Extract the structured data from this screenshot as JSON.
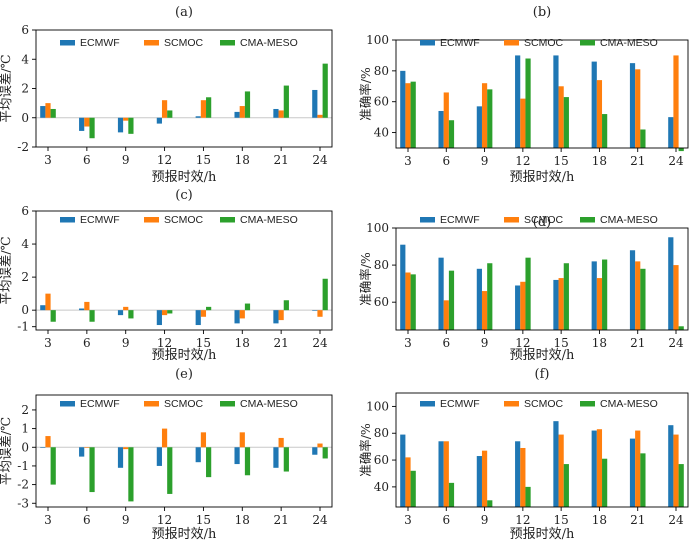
{
  "chart_data": [
    {
      "panel": "(a)",
      "type": "bar",
      "categories": [
        "3",
        "6",
        "9",
        "12",
        "15",
        "18",
        "21",
        "24"
      ],
      "series": [
        {
          "name": "ECMWF",
          "values": [
            0.8,
            -0.9,
            -1.0,
            -0.4,
            0.1,
            0.4,
            0.6,
            1.9
          ]
        },
        {
          "name": "SCMOC",
          "values": [
            1.0,
            -0.6,
            -0.2,
            1.2,
            1.2,
            0.8,
            0.5,
            0.2
          ]
        },
        {
          "name": "CMA-MESO",
          "values": [
            0.6,
            -1.4,
            -1.1,
            0.5,
            1.4,
            1.8,
            2.2,
            3.7
          ]
        }
      ],
      "xlabel": "预报时效/h",
      "ylabel": "平均误差/℃",
      "ylim": [
        -2,
        6
      ],
      "yticks": [
        -2,
        0,
        2,
        4,
        6
      ],
      "legend": "top"
    },
    {
      "panel": "(b)",
      "type": "bar",
      "categories": [
        "3",
        "6",
        "9",
        "12",
        "15",
        "18",
        "21",
        "24"
      ],
      "series": [
        {
          "name": "ECMWF",
          "values": [
            80,
            54,
            57,
            90,
            90,
            86,
            85,
            50
          ]
        },
        {
          "name": "SCMOC",
          "values": [
            72,
            66,
            72,
            62,
            70,
            74,
            81,
            90
          ]
        },
        {
          "name": "CMA-MESO",
          "values": [
            73,
            48,
            68,
            88,
            63,
            52,
            42,
            28
          ]
        }
      ],
      "xlabel": "预报时效/h",
      "ylabel": "准确率/%",
      "ylim": [
        30,
        100
      ],
      "yticks": [
        40,
        60,
        80,
        100
      ],
      "legend": "top"
    },
    {
      "panel": "(c)",
      "type": "bar",
      "categories": [
        "3",
        "6",
        "9",
        "12",
        "15",
        "18",
        "21",
        "24"
      ],
      "series": [
        {
          "name": "ECMWF",
          "values": [
            0.3,
            0.1,
            -0.3,
            -0.9,
            -0.9,
            -0.8,
            -0.8,
            0.0
          ]
        },
        {
          "name": "SCMOC",
          "values": [
            1.0,
            0.5,
            0.2,
            -0.3,
            -0.4,
            -0.5,
            -0.6,
            -0.4
          ]
        },
        {
          "name": "CMA-MESO",
          "values": [
            -0.7,
            -0.7,
            -0.5,
            -0.2,
            0.2,
            0.4,
            0.6,
            1.9
          ]
        }
      ],
      "xlabel": "预报时效/h",
      "ylabel": "平均误差/℃",
      "ylim": [
        -1.2,
        6
      ],
      "yticks": [
        -1,
        0,
        2,
        4,
        6
      ],
      "legend": "top"
    },
    {
      "panel": "(d)",
      "type": "bar",
      "categories": [
        "3",
        "6",
        "9",
        "12",
        "15",
        "18",
        "21",
        "24"
      ],
      "series": [
        {
          "name": "ECMWF",
          "values": [
            91,
            84,
            78,
            69,
            72,
            82,
            88,
            95
          ]
        },
        {
          "name": "SCMOC",
          "values": [
            76,
            61,
            66,
            71,
            73,
            73,
            82,
            80
          ]
        },
        {
          "name": "CMA-MESO",
          "values": [
            75,
            77,
            81,
            84,
            81,
            83,
            78,
            47
          ]
        }
      ],
      "xlabel": "预报时效/h",
      "ylabel": "准确率/%",
      "ylim": [
        45,
        100
      ],
      "yticks": [
        60,
        80,
        100
      ],
      "legend": "top"
    },
    {
      "panel": "(e)",
      "type": "bar",
      "categories": [
        "3",
        "6",
        "9",
        "12",
        "15",
        "18",
        "21",
        "24"
      ],
      "series": [
        {
          "name": "ECMWF",
          "values": [
            0.0,
            -0.5,
            -1.1,
            -1.0,
            -0.8,
            -0.9,
            -1.1,
            -0.4
          ]
        },
        {
          "name": "SCMOC",
          "values": [
            0.6,
            0.0,
            -0.1,
            1.0,
            0.8,
            0.8,
            0.5,
            0.2
          ]
        },
        {
          "name": "CMA-MESO",
          "values": [
            -2.0,
            -2.4,
            -2.9,
            -2.5,
            -1.6,
            -1.5,
            -1.3,
            -0.6
          ]
        }
      ],
      "xlabel": "预报时效/h",
      "ylabel": "平均误差/℃",
      "ylim": [
        -3.2,
        2.8
      ],
      "yticks": [
        -3,
        -2,
        -1,
        0,
        1,
        2
      ],
      "legend": "top"
    },
    {
      "panel": "(f)",
      "type": "bar",
      "categories": [
        "3",
        "6",
        "9",
        "12",
        "15",
        "18",
        "21",
        "24"
      ],
      "series": [
        {
          "name": "ECMWF",
          "values": [
            79,
            74,
            63,
            74,
            89,
            82,
            76,
            86
          ]
        },
        {
          "name": "SCMOC",
          "values": [
            62,
            74,
            67,
            69,
            79,
            83,
            82,
            79
          ]
        },
        {
          "name": "CMA-MESO",
          "values": [
            52,
            43,
            30,
            40,
            57,
            61,
            65,
            57
          ]
        }
      ],
      "xlabel": "预报时效/h",
      "ylabel": "准确率/%",
      "ylim": [
        25,
        110
      ],
      "yticks": [
        40,
        60,
        80,
        100
      ],
      "legend": "top"
    }
  ],
  "colors": [
    "#1f77b4",
    "#ff7f0e",
    "#2ca02c"
  ]
}
